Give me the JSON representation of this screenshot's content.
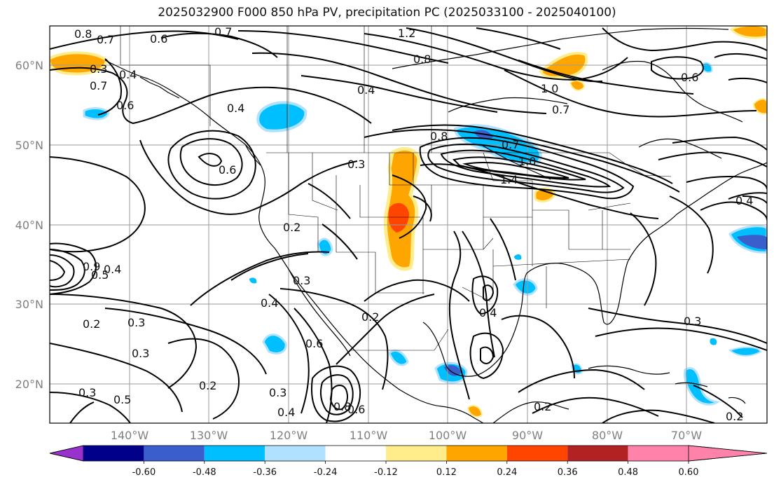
{
  "title": "2025032900 F000 850 hPa PV, precipitation PC (2025033100 - 2025040100)",
  "latitude_labels": [
    "60°N",
    "50°N",
    "40°N",
    "30°N",
    "20°N"
  ],
  "longitude_labels": [
    "140°W",
    "130°W",
    "120°W",
    "110°W",
    "100°W",
    "90°W",
    "80°W",
    "70°W"
  ],
  "colorbar": {
    "ticks": [
      "-0.60",
      "-0.48",
      "-0.36",
      "-0.24",
      "-0.12",
      "0.12",
      "0.24",
      "0.36",
      "0.48",
      "0.60"
    ],
    "colors": [
      "#9932cc",
      "#00008b",
      "#3a5fcd",
      "#00bfff",
      "#b0e2ff",
      "#ffffff",
      "#ffec8b",
      "#ffa500",
      "#ff4500",
      "#b22222",
      "#ff82ab"
    ]
  },
  "contour_labels": [
    "0.8",
    "0.7",
    "0.6",
    "0.7",
    "0.3",
    "0.4",
    "0.7",
    "0.6",
    "1.2",
    "0.8",
    "0.4",
    "1.0",
    "0.7",
    "0.4",
    "0.8",
    "0.7",
    "0.3",
    "0.6",
    "1.0",
    "1.4",
    "0.2",
    "0.3",
    "0.4",
    "0.2",
    "0.4",
    "0.6",
    "0.4",
    "0.3",
    "0.2",
    "0.3",
    "0.5",
    "0.2",
    "0.3",
    "0.4",
    "0.8",
    "0.6",
    "0.2",
    "0.3",
    "0.2",
    "0.3",
    "0.4",
    "0.9",
    "0.5",
    "0.6"
  ]
}
